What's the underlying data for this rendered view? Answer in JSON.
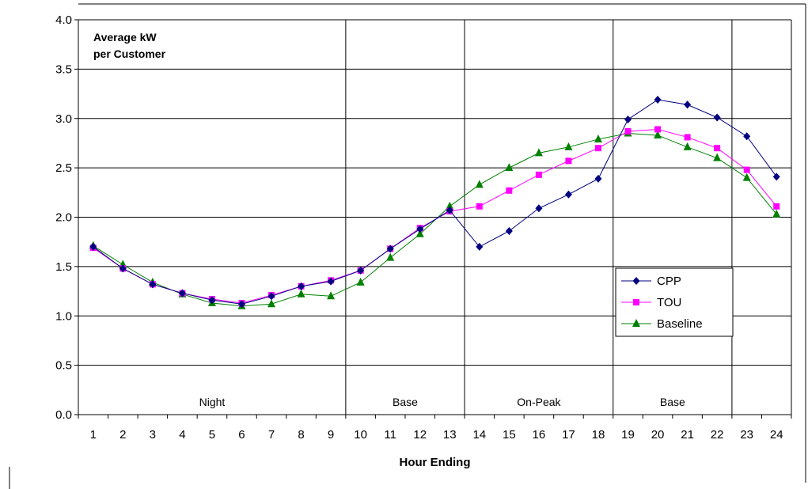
{
  "chart_data": {
    "type": "line",
    "title": "",
    "annotation": [
      "Average kW",
      "per Customer"
    ],
    "xlabel": "Hour Ending",
    "ylabel": "",
    "ylim": [
      0,
      4
    ],
    "y_ticks": [
      "0.0",
      "0.5",
      "1.0",
      "1.5",
      "2.0",
      "2.5",
      "3.0",
      "3.5",
      "4.0"
    ],
    "categories": [
      "1",
      "2",
      "3",
      "4",
      "5",
      "6",
      "7",
      "8",
      "9",
      "10",
      "11",
      "12",
      "13",
      "14",
      "15",
      "16",
      "17",
      "18",
      "19",
      "20",
      "21",
      "22",
      "23",
      "24"
    ],
    "grid": "horizontal",
    "legend_position": "right",
    "series": [
      {
        "name": "CPP",
        "marker": "diamond",
        "color": "#000080",
        "values": [
          1.7,
          1.48,
          1.32,
          1.23,
          1.16,
          1.12,
          1.2,
          1.3,
          1.35,
          1.46,
          1.68,
          1.88,
          2.07,
          1.7,
          1.86,
          2.09,
          2.23,
          2.39,
          2.99,
          3.19,
          3.14,
          3.01,
          2.82,
          2.41
        ]
      },
      {
        "name": "TOU",
        "marker": "square",
        "color": "#ff00ff",
        "values": [
          1.69,
          1.48,
          1.32,
          1.23,
          1.17,
          1.13,
          1.21,
          1.3,
          1.36,
          1.46,
          1.68,
          1.89,
          2.06,
          2.11,
          2.27,
          2.43,
          2.57,
          2.7,
          2.87,
          2.89,
          2.81,
          2.7,
          2.48,
          2.11
        ]
      },
      {
        "name": "Baseline",
        "marker": "triangle",
        "color": "#008000",
        "values": [
          1.71,
          1.52,
          1.34,
          1.22,
          1.13,
          1.1,
          1.12,
          1.22,
          1.2,
          1.34,
          1.59,
          1.83,
          2.11,
          2.33,
          2.5,
          2.65,
          2.71,
          2.79,
          2.85,
          2.83,
          2.71,
          2.6,
          2.4,
          2.03
        ]
      }
    ],
    "regions": [
      {
        "label": "Night",
        "from": 0,
        "to": 9
      },
      {
        "label": "Base",
        "from": 9,
        "to": 13
      },
      {
        "label": "On-Peak",
        "from": 13,
        "to": 18
      },
      {
        "label": "Base",
        "from": 18,
        "to": 22
      }
    ],
    "region_dividers": [
      9,
      13,
      18,
      22
    ]
  }
}
